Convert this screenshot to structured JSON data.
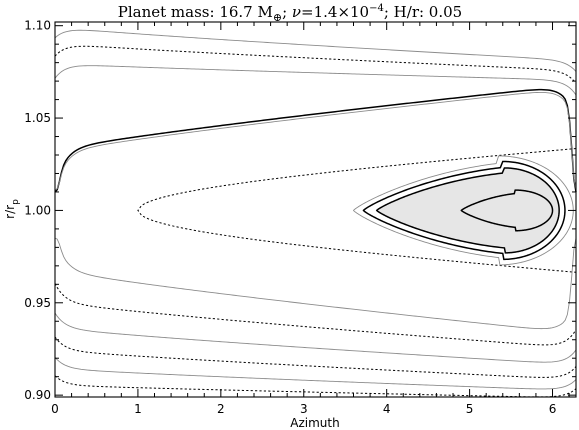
{
  "title_parts": {
    "prefix": "Planet mass: 16.7 M",
    "mass_subscript": "⊕",
    "nu_symbol": "ν",
    "nu_text": "=1.4×10",
    "nu_exponent": "−4",
    "suffix": "; H/r: 0.05"
  },
  "chart_data": {
    "type": "line",
    "title": "Planet mass: 16.7 M⊕; ν=1.4×10⁻⁴; H/r: 0.05",
    "xlabel": "Azimuth",
    "ylabel_base": "r/r",
    "ylabel_sub": "p",
    "xlim": [
      0,
      6.2832
    ],
    "ylim": [
      0.899,
      1.102
    ],
    "xticks": [
      0,
      1,
      2,
      3,
      4,
      5,
      6
    ],
    "yticks": [
      0.9,
      0.95,
      1.0,
      1.05,
      1.1
    ],
    "ytick_labels": [
      "0.90",
      "0.95",
      "1.00",
      "1.05",
      "1.10"
    ],
    "grid": false,
    "colors": {
      "axis": "#000000",
      "solid_contour": "#000000",
      "dotted_contour": "#000000",
      "gray_contour": "#8c8c8c",
      "horseshoe_fill": "#e6e6e6"
    },
    "series": [
      {
        "style": "gray",
        "shape": "sep_upper",
        "r0": 1.0994,
        "r1": 1.0812,
        "edge_depth": 0.006
      },
      {
        "style": "dotted",
        "shape": "sep_upper",
        "r0": 1.0905,
        "r1": 1.0758,
        "edge_depth": 0.007
      },
      {
        "style": "gray",
        "shape": "sep_upper",
        "r0": 1.0795,
        "r1": 1.0705,
        "edge_depth": 0.008
      },
      {
        "style": "solid",
        "shape": "sep_upper",
        "r0": 1.0325,
        "r1": 1.068,
        "edge_depth": 0.02,
        "edge_r": 1.01
      },
      {
        "style": "gray",
        "shape": "sep_upper",
        "r0": 1.031,
        "r1": 1.0665,
        "edge_depth": 0.02,
        "edge_r": 1.011
      },
      {
        "style": "dotted",
        "shape": "horseshoe",
        "r_half": 0.0335,
        "x_tip": 1.0,
        "r_tip": 1.0
      },
      {
        "style": "gray",
        "shape": "tadpole",
        "cx": 5.35,
        "r_half": 0.0295,
        "x_left": 3.6,
        "x_right": 6.25
      },
      {
        "style": "solid",
        "shape": "tadpole",
        "cx": 5.4,
        "r_half": 0.0265,
        "x_left": 3.72,
        "x_right": 6.15
      },
      {
        "style": "solid",
        "shape": "tadpole",
        "cx": 5.42,
        "r_half": 0.023,
        "x_left": 3.88,
        "x_right": 6.08,
        "filled": true
      },
      {
        "style": "solid",
        "shape": "tadpole",
        "cx": 5.55,
        "r_half": 0.011,
        "x_left": 4.9,
        "x_right": 6.0
      },
      {
        "style": "gray",
        "shape": "sep_lower",
        "r0": 0.968,
        "r1": 0.9335,
        "edge_depth": 0.018,
        "edge_r": 0.985
      },
      {
        "style": "dotted",
        "shape": "sep_lower",
        "r0": 0.9505,
        "r1": 0.9255,
        "edge_depth": 0.01
      },
      {
        "style": "gray",
        "shape": "sep_lower",
        "r0": 0.9365,
        "r1": 0.9165,
        "edge_depth": 0.008
      },
      {
        "style": "dotted",
        "shape": "sep_lower",
        "r0": 0.9245,
        "r1": 0.9085,
        "edge_depth": 0.007
      },
      {
        "style": "gray",
        "shape": "sep_lower",
        "r0": 0.9145,
        "r1": 0.9025,
        "edge_depth": 0.006
      },
      {
        "style": "dotted",
        "shape": "sep_lower",
        "r0": 0.9055,
        "r1": 0.8985,
        "edge_depth": 0.005
      }
    ]
  }
}
